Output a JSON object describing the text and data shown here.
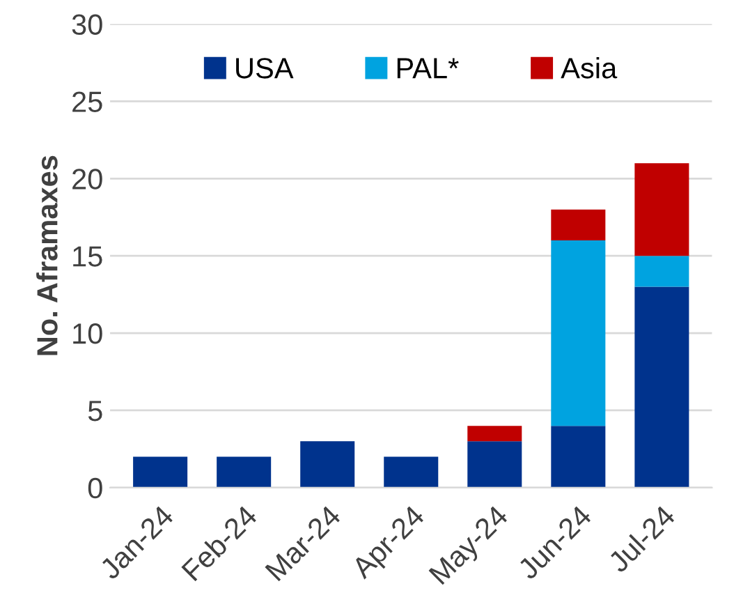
{
  "chart_data": {
    "type": "bar",
    "stacked": true,
    "ylabel": "No. Aframaxes",
    "categories": [
      "Jan-24",
      "Feb-24",
      "Mar-24",
      "Apr-24",
      "May-24",
      "Jun-24",
      "Jul-24"
    ],
    "series": [
      {
        "name": "USA",
        "color": "#00338d",
        "values": [
          2,
          2,
          3,
          2,
          3,
          4,
          13
        ]
      },
      {
        "name": "PAL*",
        "color": "#00a3e0",
        "values": [
          null,
          null,
          null,
          null,
          null,
          12,
          2
        ]
      },
      {
        "name": "Asia",
        "color": "#c00000",
        "values": [
          null,
          null,
          null,
          null,
          1,
          2,
          6
        ]
      }
    ],
    "ylim": [
      0,
      30
    ],
    "yticks": [
      0,
      5,
      10,
      15,
      20,
      25,
      30
    ],
    "grid": "y",
    "legend": "top"
  }
}
